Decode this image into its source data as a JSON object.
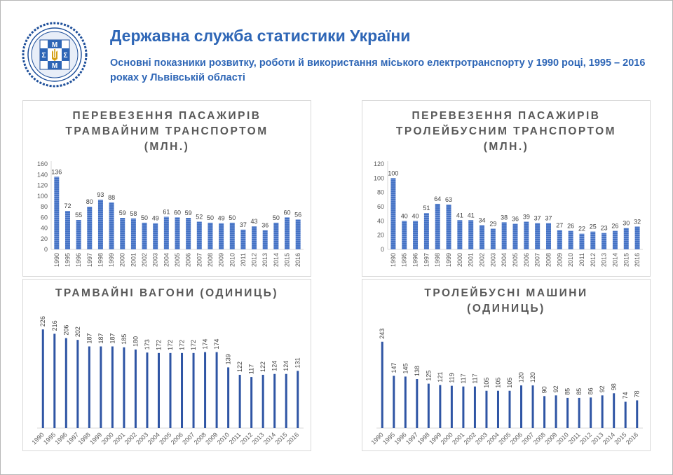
{
  "header": {
    "org_title": "Державна служба статистики України",
    "subtitle": "Основні показники розвитку, роботи й використання міського електротранспорту у 1990 році, 1995 – 2016 роках у Львівській області",
    "logo_letters": [
      "М",
      "Σ",
      "М",
      "Σ"
    ]
  },
  "colors": {
    "accent": "#2e66b6",
    "bar": "#4472c4",
    "bar_dark": "#2f55a4",
    "grid": "#d9d9d9",
    "text": "#595959"
  },
  "chart_data": [
    {
      "id": "tram-passengers",
      "type": "bar",
      "title": "ПЕРЕВЕЗЕННЯ ПАСАЖИРІВ\nТРАМВАЙНИМ ТРАНСПОРТОМ\n(МЛН.)",
      "categories": [
        "1990",
        "1995",
        "1996",
        "1997",
        "1998",
        "1999",
        "2000",
        "2001",
        "2002",
        "2003",
        "2004",
        "2005",
        "2006",
        "2007",
        "2008",
        "2009",
        "2010",
        "2011",
        "2012",
        "2013",
        "2014",
        "2015",
        "2016"
      ],
      "values": [
        136,
        72,
        55,
        80,
        93,
        88,
        59,
        58,
        50,
        49,
        61,
        60,
        59,
        52,
        50,
        49,
        50,
        37,
        43,
        36,
        50,
        60,
        56
      ],
      "ylim": [
        0,
        160
      ],
      "yticks": [
        0,
        20,
        40,
        60,
        80,
        100,
        120,
        140,
        160
      ],
      "xlabel": "",
      "ylabel": ""
    },
    {
      "id": "trolley-passengers",
      "type": "bar",
      "title": "ПЕРЕВЕЗЕННЯ ПАСАЖИРІВ\nТРОЛЕЙБУСНИМ ТРАНСПОРТОМ\n(МЛН.)",
      "categories": [
        "1990",
        "1995",
        "1996",
        "1997",
        "1998",
        "1999",
        "2000",
        "2001",
        "2002",
        "2003",
        "2004",
        "2005",
        "2006",
        "2007",
        "2008",
        "2009",
        "2010",
        "2011",
        "2012",
        "2013",
        "2014",
        "2015",
        "2016"
      ],
      "values": [
        100,
        40,
        40,
        51,
        64,
        63,
        41,
        41,
        34,
        29,
        38,
        36,
        39,
        37,
        37,
        27,
        26,
        22,
        25,
        23,
        26,
        30,
        32
      ],
      "ylim": [
        0,
        120
      ],
      "yticks": [
        0,
        20,
        40,
        60,
        80,
        100,
        120
      ],
      "xlabel": "",
      "ylabel": ""
    },
    {
      "id": "tram-cars",
      "type": "bar",
      "title": "ТРАМВАЙНІ ВАГОНИ (ОДИНИЦЬ)",
      "categories": [
        "1990",
        "1995",
        "1996",
        "1997",
        "1998",
        "1999",
        "2000",
        "2001",
        "2002",
        "2003",
        "2004",
        "2005",
        "2006",
        "2007",
        "2008",
        "2009",
        "2010",
        "2011",
        "2012",
        "2013",
        "2014",
        "2015",
        "2016"
      ],
      "values": [
        226,
        216,
        206,
        202,
        187,
        187,
        187,
        185,
        180,
        173,
        172,
        172,
        172,
        172,
        174,
        174,
        139,
        122,
        117,
        122,
        124,
        124,
        131
      ],
      "ylim": [
        0,
        260
      ],
      "yticks": [],
      "xlabel": "",
      "ylabel": ""
    },
    {
      "id": "trolley-cars",
      "type": "bar",
      "title": "ТРОЛЕЙБУСНІ МАШИНИ\n(ОДИНИЦЬ)",
      "categories": [
        "1990",
        "1995",
        "1996",
        "1997",
        "1998",
        "1999",
        "2000",
        "2001",
        "2002",
        "2003",
        "2004",
        "2005",
        "2006",
        "2007",
        "2008",
        "2009",
        "2010",
        "2011",
        "2012",
        "2013",
        "2014",
        "2015",
        "2016"
      ],
      "values": [
        243,
        147,
        145,
        138,
        125,
        121,
        119,
        117,
        117,
        105,
        105,
        105,
        120,
        120,
        90,
        92,
        85,
        85,
        86,
        92,
        98,
        74,
        78
      ],
      "ylim": [
        0,
        280
      ],
      "yticks": [],
      "xlabel": "",
      "ylabel": ""
    }
  ]
}
